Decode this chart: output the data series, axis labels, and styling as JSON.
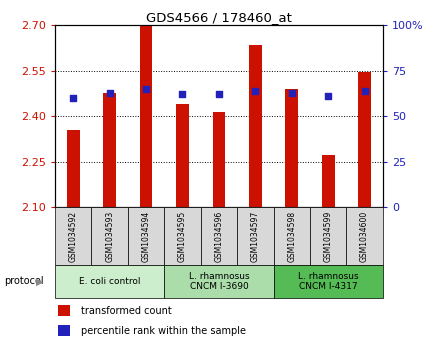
{
  "title": "GDS4566 / 178460_at",
  "samples": [
    "GSM1034592",
    "GSM1034593",
    "GSM1034594",
    "GSM1034595",
    "GSM1034596",
    "GSM1034597",
    "GSM1034598",
    "GSM1034599",
    "GSM1034600"
  ],
  "transformed_counts": [
    2.355,
    2.475,
    2.7,
    2.44,
    2.415,
    2.635,
    2.49,
    2.27,
    2.545
  ],
  "percentile_ranks": [
    60,
    63,
    65,
    62,
    62,
    64,
    63,
    61,
    64
  ],
  "ylim_left": [
    2.1,
    2.7
  ],
  "ylim_right": [
    0,
    100
  ],
  "yticks_left": [
    2.1,
    2.25,
    2.4,
    2.55,
    2.7
  ],
  "yticks_right": [
    0,
    25,
    50,
    75,
    100
  ],
  "bar_color": "#cc1100",
  "dot_color": "#2222bb",
  "protocol_groups": [
    {
      "label": "E. coli control",
      "start": 0,
      "end": 3,
      "color": "#cceecc"
    },
    {
      "label": "L. rhamnosus\nCNCM I-3690",
      "start": 3,
      "end": 6,
      "color": "#aaddaa"
    },
    {
      "label": "L. rhamnosus\nCNCM I-4317",
      "start": 6,
      "end": 9,
      "color": "#55bb55"
    }
  ],
  "legend_bar_label": "transformed count",
  "legend_dot_label": "percentile rank within the sample",
  "left_tick_color": "#cc1100",
  "right_tick_color": "#2222bb",
  "bar_width": 0.35,
  "background_color": "#ffffff",
  "sample_box_color": "#d8d8d8",
  "grid_color": "#000000"
}
